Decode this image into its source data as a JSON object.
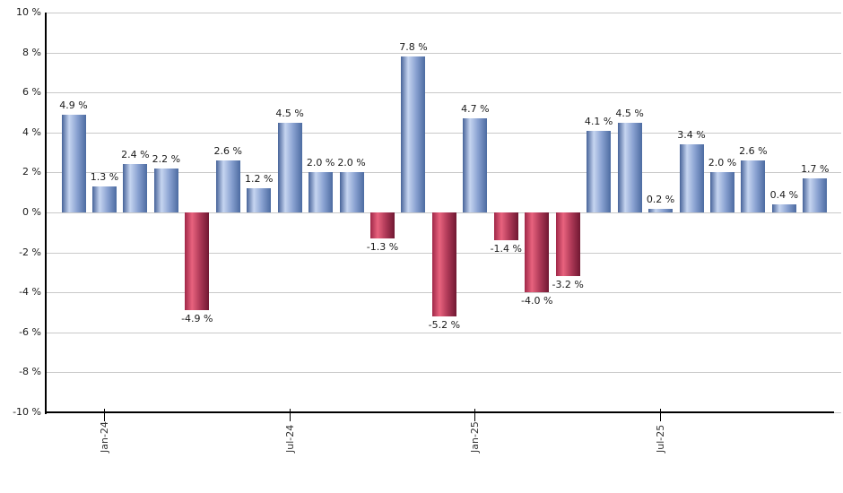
{
  "chart_data": {
    "type": "bar",
    "title": "",
    "unit": "%",
    "ylim": [
      -10,
      10
    ],
    "ytick_step": 2,
    "grid": true,
    "legend_position": "none",
    "yticks": [
      "10 %",
      "8 %",
      "6 %",
      "4 %",
      "2 %",
      "0 %",
      "-2 %",
      "-4 %",
      "-6 %",
      "-8 %",
      "-10 %"
    ],
    "bars": [
      {
        "value": 4.9,
        "label": "4.9 %"
      },
      {
        "value": 1.3,
        "label": "1.3 %"
      },
      {
        "value": 2.4,
        "label": "2.4 %"
      },
      {
        "value": 2.2,
        "label": "2.2 %"
      },
      {
        "value": -4.9,
        "label": "-4.9 %"
      },
      {
        "value": 2.6,
        "label": "2.6 %"
      },
      {
        "value": 1.2,
        "label": "1.2 %"
      },
      {
        "value": 4.5,
        "label": "4.5 %"
      },
      {
        "value": 2.0,
        "label": "2.0 %"
      },
      {
        "value": 2.0,
        "label": "2.0 %"
      },
      {
        "value": -1.3,
        "label": "-1.3 %"
      },
      {
        "value": 7.8,
        "label": "7.8 %"
      },
      {
        "value": -5.2,
        "label": "-5.2 %"
      },
      {
        "value": 4.7,
        "label": "4.7 %"
      },
      {
        "value": -1.4,
        "label": "-1.4 %"
      },
      {
        "value": -4.0,
        "label": "-4.0 %"
      },
      {
        "value": -3.2,
        "label": "-3.2 %"
      },
      {
        "value": 4.1,
        "label": "4.1 %"
      },
      {
        "value": 4.5,
        "label": "4.5 %"
      },
      {
        "value": 0.2,
        "label": "0.2 %"
      },
      {
        "value": 3.4,
        "label": "3.4 %"
      },
      {
        "value": 2.0,
        "label": "2.0 %"
      },
      {
        "value": 2.6,
        "label": "2.6 %"
      },
      {
        "value": 0.4,
        "label": "0.4 %"
      },
      {
        "value": 1.7,
        "label": "1.7 %"
      }
    ],
    "xticks": [
      {
        "index": 1,
        "label": "Jan-24"
      },
      {
        "index": 7,
        "label": "Jul-24"
      },
      {
        "index": 13,
        "label": "Jan-25"
      },
      {
        "index": 19,
        "label": "Jul-25"
      }
    ],
    "colors": {
      "positive_dark": "#466399",
      "positive_light": "#c6d5f0",
      "positive_mid": "#8ba3d2",
      "positive_edge": "#4c6ba1",
      "negative_dark": "#a02748",
      "negative_light": "#e8637e",
      "negative_mid": "#b03a58",
      "negative_edge": "#701832",
      "grid": "#c9c9c9",
      "axis": "#000000",
      "text": "#1a1a1a"
    }
  }
}
